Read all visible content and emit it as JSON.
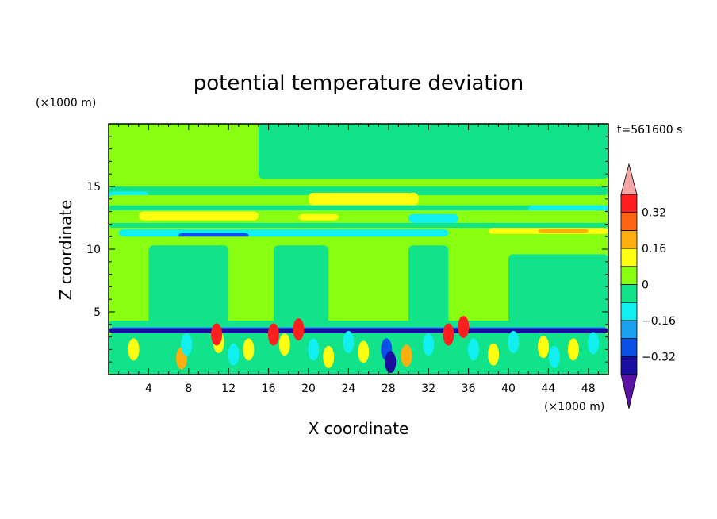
{
  "chart_data": {
    "type": "heatmap",
    "title": "potential temperature deviation",
    "xlabel": "X coordinate",
    "ylabel": "Z coordinate",
    "x_unit": "(×1000 m)",
    "y_unit": "(×1000 m)",
    "time_label": "t=561600 s",
    "xlim": [
      0,
      50
    ],
    "ylim": [
      0,
      20
    ],
    "x_ticks": [
      4,
      8,
      12,
      16,
      20,
      24,
      28,
      32,
      36,
      40,
      44,
      48
    ],
    "y_ticks": [
      5,
      10,
      15
    ],
    "colorbar": {
      "levels": [
        -0.4,
        -0.32,
        -0.24,
        -0.16,
        -0.08,
        0,
        0.08,
        0.16,
        0.24,
        0.32,
        0.4
      ],
      "labels": [
        "0.32",
        "0.16",
        "0",
        "−0.16",
        "−0.32"
      ],
      "label_values": [
        0.32,
        0.16,
        0,
        -0.16,
        -0.32
      ],
      "colors": [
        "#5a12a4",
        "#1a0ea0",
        "#0a50e6",
        "#1aa2f0",
        "#10f0f0",
        "#10e38a",
        "#88ff10",
        "#ffff10",
        "#ffae10",
        "#ff6410",
        "#ff1e1e",
        "#f4a5a5"
      ]
    },
    "bands": [
      {
        "z0": 18.0,
        "z1": 20.0,
        "x0": 0,
        "x1": 50,
        "value": 0.05
      },
      {
        "z0": 16.0,
        "z1": 19.0,
        "x0": 16,
        "x1": 32,
        "value": 0.05
      },
      {
        "z0": 15.6,
        "z1": 20.0,
        "x0": 15,
        "x1": 50,
        "value": -0.04
      },
      {
        "z0": 15.0,
        "z1": 15.6,
        "x0": 0,
        "x1": 50,
        "value": 0.05
      },
      {
        "z0": 14.3,
        "z1": 15.0,
        "x0": 0,
        "x1": 50,
        "value": -0.04
      },
      {
        "z0": 13.9,
        "z1": 14.6,
        "x0": 0,
        "x1": 4,
        "value": -0.12
      },
      {
        "z0": 13.4,
        "z1": 14.3,
        "x0": 0,
        "x1": 50,
        "value": 0.05
      },
      {
        "z0": 13.5,
        "z1": 14.5,
        "x0": 20,
        "x1": 31,
        "value": 0.12
      },
      {
        "z0": 13.1,
        "z1": 13.5,
        "x0": 0,
        "x1": 50,
        "value": -0.04
      },
      {
        "z0": 12.9,
        "z1": 13.5,
        "x0": 42,
        "x1": 50,
        "value": -0.12
      },
      {
        "z0": 12.1,
        "z1": 13.1,
        "x0": 0,
        "x1": 50,
        "value": 0.05
      },
      {
        "z0": 12.3,
        "z1": 13.0,
        "x0": 3,
        "x1": 15,
        "value": 0.12
      },
      {
        "z0": 12.3,
        "z1": 12.8,
        "x0": 19,
        "x1": 23,
        "value": 0.12
      },
      {
        "z0": 12.1,
        "z1": 12.8,
        "x0": 30,
        "x1": 35,
        "value": -0.12
      },
      {
        "z0": 11.7,
        "z1": 12.1,
        "x0": 0,
        "x1": 50,
        "value": -0.04
      },
      {
        "z0": 11.1,
        "z1": 11.7,
        "x0": 0,
        "x1": 50,
        "value": 0.05
      },
      {
        "z0": 11.0,
        "z1": 11.6,
        "x0": 1,
        "x1": 34,
        "value": -0.12
      },
      {
        "z0": 10.9,
        "z1": 11.3,
        "x0": 7,
        "x1": 14,
        "value": -0.28
      },
      {
        "z0": 11.2,
        "z1": 11.7,
        "x0": 38,
        "x1": 50,
        "value": 0.12
      },
      {
        "z0": 11.3,
        "z1": 11.6,
        "x0": 43,
        "x1": 48,
        "value": 0.2
      },
      {
        "z0": 10.3,
        "z1": 11.0,
        "x0": 0,
        "x1": 50,
        "value": 0.05
      },
      {
        "z0": 4.5,
        "z1": 10.3,
        "x0": 0,
        "x1": 50,
        "value": 0.05
      },
      {
        "z0": 4.0,
        "z1": 10.3,
        "x0": 4,
        "x1": 12,
        "value": -0.04
      },
      {
        "z0": 4.0,
        "z1": 10.3,
        "x0": 16.5,
        "x1": 22,
        "value": -0.04
      },
      {
        "z0": 4.0,
        "z1": 10.3,
        "x0": 30,
        "x1": 34,
        "value": -0.04
      },
      {
        "z0": 4.0,
        "z1": 9.6,
        "x0": 40,
        "x1": 50,
        "value": -0.04
      },
      {
        "z0": 3.8,
        "z1": 4.3,
        "x0": 0,
        "x1": 50,
        "value": -0.04
      },
      {
        "z0": 3.3,
        "z1": 3.8,
        "x0": 0,
        "x1": 50,
        "value": -0.2
      },
      {
        "z0": 3.3,
        "z1": 3.7,
        "x0": 0,
        "x1": 50,
        "value": -0.36
      },
      {
        "z0": 0.0,
        "z1": 3.3,
        "x0": 0,
        "x1": 50,
        "value": -0.04
      }
    ],
    "cells": [
      {
        "x": 2.5,
        "z": 2.0,
        "value": 0.12
      },
      {
        "x": 7.3,
        "z": 1.3,
        "value": 0.2
      },
      {
        "x": 7.8,
        "z": 2.4,
        "value": -0.12
      },
      {
        "x": 11.0,
        "z": 2.6,
        "value": 0.12
      },
      {
        "x": 12.5,
        "z": 1.6,
        "value": -0.12
      },
      {
        "x": 14.0,
        "z": 2.0,
        "value": 0.12
      },
      {
        "x": 10.8,
        "z": 3.2,
        "value": 0.36
      },
      {
        "x": 16.5,
        "z": 3.2,
        "value": 0.36
      },
      {
        "x": 17.6,
        "z": 2.4,
        "value": 0.12
      },
      {
        "x": 19.0,
        "z": 3.6,
        "value": 0.36
      },
      {
        "x": 20.5,
        "z": 2.0,
        "value": -0.12
      },
      {
        "x": 22.0,
        "z": 1.4,
        "value": 0.12
      },
      {
        "x": 24.0,
        "z": 2.6,
        "value": -0.12
      },
      {
        "x": 25.5,
        "z": 1.8,
        "value": 0.12
      },
      {
        "x": 27.8,
        "z": 2.0,
        "value": -0.28
      },
      {
        "x": 28.2,
        "z": 1.0,
        "value": -0.4
      },
      {
        "x": 29.8,
        "z": 1.5,
        "value": 0.2
      },
      {
        "x": 32.0,
        "z": 2.4,
        "value": -0.12
      },
      {
        "x": 34.0,
        "z": 3.2,
        "value": 0.36
      },
      {
        "x": 35.5,
        "z": 3.8,
        "value": 0.36
      },
      {
        "x": 36.5,
        "z": 2.0,
        "value": -0.12
      },
      {
        "x": 38.5,
        "z": 1.6,
        "value": 0.12
      },
      {
        "x": 40.5,
        "z": 2.6,
        "value": -0.12
      },
      {
        "x": 43.5,
        "z": 2.2,
        "value": 0.12
      },
      {
        "x": 44.6,
        "z": 1.4,
        "value": -0.12
      },
      {
        "x": 46.5,
        "z": 2.0,
        "value": 0.12
      },
      {
        "x": 48.5,
        "z": 2.5,
        "value": -0.12
      }
    ]
  }
}
